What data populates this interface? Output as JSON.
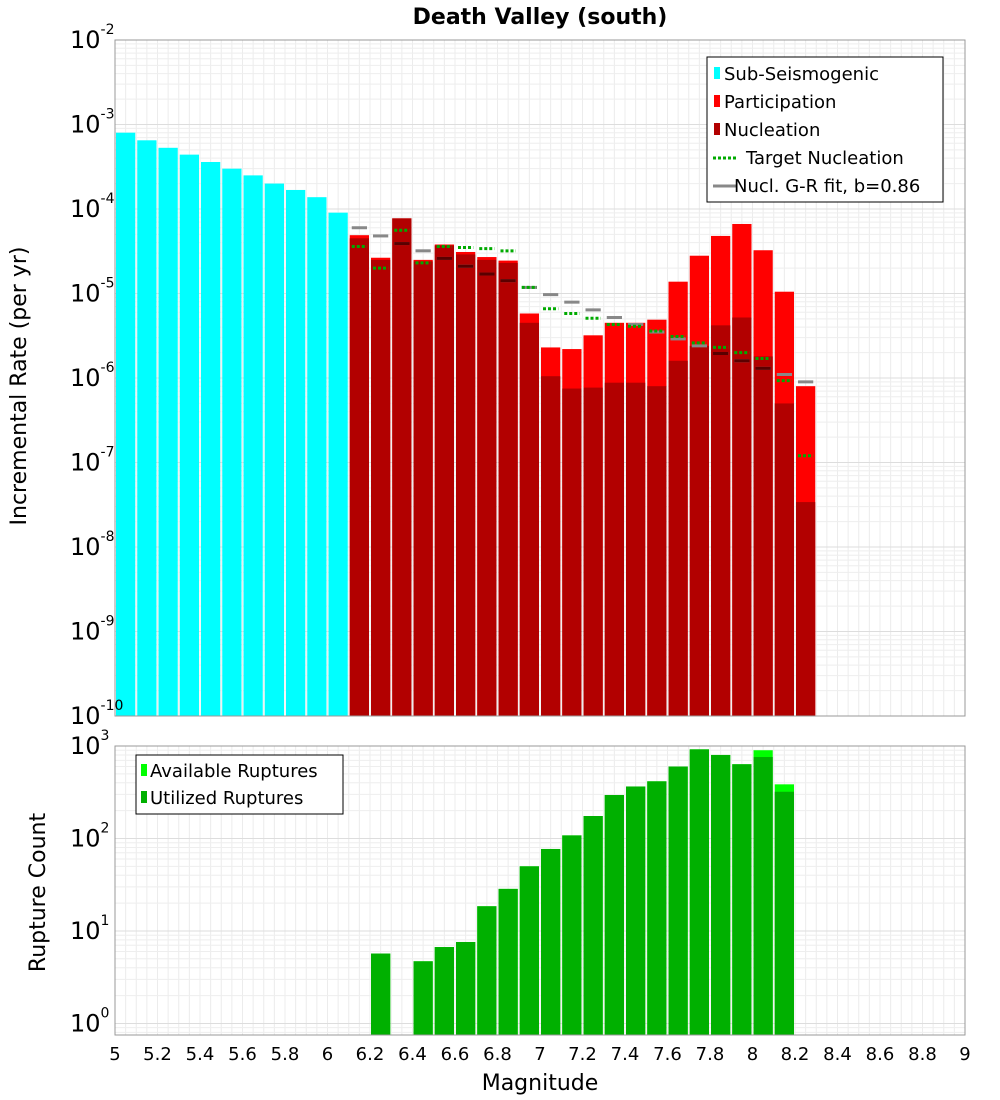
{
  "chart_data": [
    {
      "type": "bar",
      "title": "Death Valley (south)",
      "xlabel": "",
      "ylabel": "Incremental Rate (per yr)",
      "y_scale": "log",
      "xlim": [
        5,
        9
      ],
      "ylim": [
        1e-10,
        0.01
      ],
      "y_ticks": [
        {
          "base": "10",
          "exp": "-10",
          "value": 1e-10
        },
        {
          "base": "10",
          "exp": "-9",
          "value": 1e-09
        },
        {
          "base": "10",
          "exp": "-8",
          "value": 1e-08
        },
        {
          "base": "10",
          "exp": "-7",
          "value": 1e-07
        },
        {
          "base": "10",
          "exp": "-6",
          "value": 1e-06
        },
        {
          "base": "10",
          "exp": "-5",
          "value": 1e-05
        },
        {
          "base": "10",
          "exp": "-4",
          "value": 0.0001
        },
        {
          "base": "10",
          "exp": "-3",
          "value": 0.001
        },
        {
          "base": "10",
          "exp": "-2",
          "value": 0.01
        }
      ],
      "grid": true,
      "legend_position": "top-right",
      "bin_width": 0.1,
      "series": [
        {
          "name": "Sub-Seismogenic",
          "color": "#00ffff",
          "style": "bar",
          "x": [
            5.05,
            5.15,
            5.25,
            5.35,
            5.45,
            5.55,
            5.65,
            5.75,
            5.85,
            5.95,
            6.05
          ],
          "values": [
            0.0008,
            0.00065,
            0.00053,
            0.00044,
            0.00036,
            0.0003,
            0.00025,
            0.0002,
            0.000168,
            0.000138,
            9.05e-05
          ]
        },
        {
          "name": "Participation",
          "color": "#ff0000",
          "style": "bar",
          "x": [
            6.15,
            6.25,
            6.35,
            6.45,
            6.55,
            6.65,
            6.75,
            6.85,
            6.95,
            7.05,
            7.15,
            7.25,
            7.35,
            7.45,
            7.55,
            7.65,
            7.75,
            7.85,
            7.95,
            8.05,
            8.15,
            8.25
          ],
          "values": [
            4.9e-05,
            2.65e-05,
            7.75e-05,
            2.5e-05,
            3.8e-05,
            3.1e-05,
            2.7e-05,
            2.45e-05,
            5.8e-06,
            2.3e-06,
            2.2e-06,
            3.2e-06,
            4.5e-06,
            4.5e-06,
            4.9e-06,
            1.38e-05,
            2.8e-05,
            4.8e-05,
            6.65e-05,
            3.25e-05,
            1.05e-05,
            8e-07
          ]
        },
        {
          "name": "Nucleation",
          "color": "#b20000",
          "style": "bar",
          "x": [
            6.15,
            6.25,
            6.35,
            6.45,
            6.55,
            6.65,
            6.75,
            6.85,
            6.95,
            7.05,
            7.15,
            7.25,
            7.35,
            7.45,
            7.55,
            7.65,
            7.75,
            7.85,
            7.95,
            8.05,
            8.15,
            8.25
          ],
          "values": [
            4.5e-05,
            2.5e-05,
            7.75e-05,
            2.4e-05,
            3.7e-05,
            2.9e-05,
            2.5e-05,
            2.3e-05,
            4.5e-06,
            1.05e-06,
            7.5e-07,
            7.7e-07,
            8.8e-07,
            8.8e-07,
            8e-07,
            1.6e-06,
            2.4e-06,
            4.2e-06,
            5.2e-06,
            1.8e-06,
            5e-07,
            3.4e-08
          ]
        },
        {
          "name": "Target Nucleation",
          "color": "#00aa00",
          "style": "dotted-step",
          "x": [
            6.15,
            6.25,
            6.35,
            6.45,
            6.55,
            6.65,
            6.75,
            6.85,
            6.95,
            7.05,
            7.15,
            7.25,
            7.35,
            7.45,
            7.55,
            7.65,
            7.75,
            7.85,
            7.95,
            8.05,
            8.15,
            8.25
          ],
          "values": [
            3.6e-05,
            2e-05,
            5.6e-05,
            2.3e-05,
            3.6e-05,
            3.5e-05,
            3.4e-05,
            3.2e-05,
            1.18e-05,
            6.6e-06,
            5.8e-06,
            5.1e-06,
            4.3e-06,
            4.1e-06,
            3.6e-06,
            3.1e-06,
            2.6e-06,
            2.3e-06,
            2e-06,
            1.7e-06,
            9.3e-07,
            1.2e-07
          ]
        },
        {
          "name": "Nucl. G-R fit, b=0.86",
          "color": "#888888",
          "style": "solid-step",
          "x": [
            6.15,
            6.25,
            6.35,
            6.45,
            6.55,
            6.65,
            6.75,
            6.85,
            6.95,
            7.05,
            7.15,
            7.25,
            7.35,
            7.45,
            7.55,
            7.65,
            7.75,
            7.85,
            7.95,
            8.05,
            8.15,
            8.25
          ],
          "values": [
            6e-05,
            4.8e-05,
            3.9e-05,
            3.2e-05,
            2.6e-05,
            2.1e-05,
            1.7e-05,
            1.42e-05,
            1.18e-05,
            9.7e-06,
            7.9e-06,
            6.4e-06,
            5.2e-06,
            4.3e-06,
            3.5e-06,
            2.9e-06,
            2.4e-06,
            1.95e-06,
            1.6e-06,
            1.3e-06,
            1.1e-06,
            9e-07
          ]
        }
      ]
    },
    {
      "type": "bar",
      "title": "",
      "xlabel": "Magnitude",
      "ylabel": "Rupture Count",
      "y_scale": "log",
      "xlim": [
        5,
        9
      ],
      "ylim": [
        0.75,
        1000
      ],
      "x_ticks": [
        "5",
        "5.2",
        "5.4",
        "5.6",
        "5.8",
        "6",
        "6.2",
        "6.4",
        "6.6",
        "6.8",
        "7",
        "7.2",
        "7.4",
        "7.6",
        "7.8",
        "8",
        "8.2",
        "8.4",
        "8.6",
        "8.8",
        "9"
      ],
      "y_ticks": [
        {
          "base": "10",
          "exp": "0",
          "value": 1
        },
        {
          "base": "10",
          "exp": "1",
          "value": 10
        },
        {
          "base": "10",
          "exp": "2",
          "value": 100
        },
        {
          "base": "10",
          "exp": "3",
          "value": 1000
        }
      ],
      "grid": true,
      "legend_position": "top-left",
      "bin_width": 0.1,
      "series": [
        {
          "name": "Available Ruptures",
          "color": "#00ff00",
          "style": "bar",
          "x": [
            6.25,
            6.45,
            6.55,
            6.65,
            6.75,
            6.85,
            6.95,
            7.05,
            7.15,
            7.25,
            7.35,
            7.45,
            7.55,
            7.65,
            7.75,
            7.85,
            7.95,
            8.05,
            8.15
          ],
          "values": [
            5.7,
            4.7,
            6.7,
            7.6,
            18.5,
            28.5,
            50,
            77,
            108,
            175,
            295,
            365,
            415,
            600,
            920,
            800,
            635,
            900,
            385
          ]
        },
        {
          "name": "Utilized Ruptures",
          "color": "#00b000",
          "style": "bar",
          "x": [
            6.25,
            6.45,
            6.55,
            6.65,
            6.75,
            6.85,
            6.95,
            7.05,
            7.15,
            7.25,
            7.35,
            7.45,
            7.55,
            7.65,
            7.75,
            7.85,
            7.95,
            8.05,
            8.15
          ],
          "values": [
            5.7,
            4.7,
            6.7,
            7.6,
            18.5,
            28.5,
            50,
            77,
            108,
            175,
            295,
            365,
            415,
            600,
            920,
            800,
            635,
            760,
            320
          ]
        }
      ]
    }
  ]
}
